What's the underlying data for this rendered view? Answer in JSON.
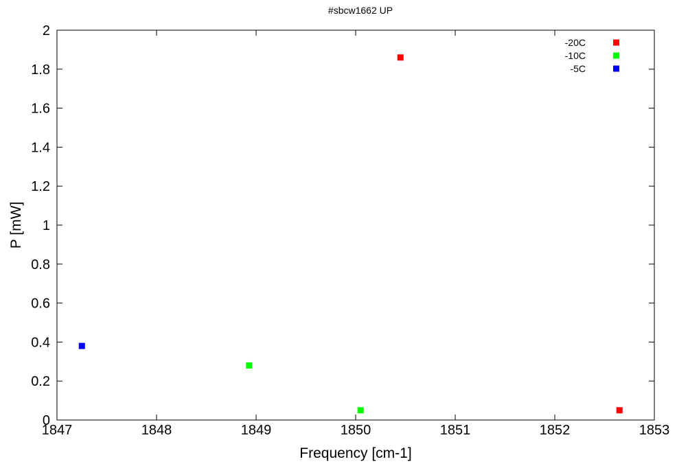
{
  "chart_data": {
    "type": "scatter",
    "title": "#sbcw1662 UP",
    "xlabel": "Frequency [cm-1]",
    "ylabel": "P [mW]",
    "xlim": [
      1847,
      1853
    ],
    "ylim": [
      0,
      2
    ],
    "xticks": [
      1847,
      1848,
      1849,
      1850,
      1851,
      1852,
      1853
    ],
    "yticks": [
      0,
      0.2,
      0.4,
      0.6,
      0.8,
      1,
      1.2,
      1.4,
      1.6,
      1.8,
      2
    ],
    "grid": false,
    "legend_position": "top-right",
    "series": [
      {
        "name": "-20C",
        "color": "#ff0000",
        "points": [
          [
            1850.45,
            1.86
          ],
          [
            1852.65,
            0.05
          ]
        ]
      },
      {
        "name": "-10C",
        "color": "#00ff00",
        "points": [
          [
            1848.93,
            0.28
          ],
          [
            1850.05,
            0.05
          ]
        ]
      },
      {
        "name": "-5C",
        "color": "#0000ff",
        "points": [
          [
            1847.25,
            0.38
          ]
        ]
      }
    ]
  }
}
